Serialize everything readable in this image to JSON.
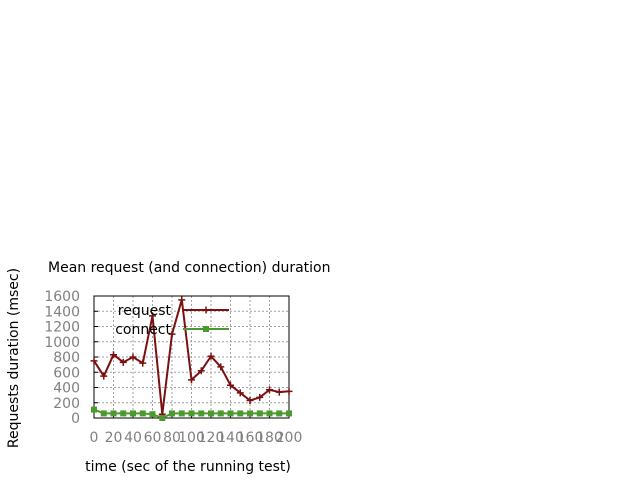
{
  "chart_data": {
    "type": "line",
    "title": "Mean request (and connection) duration",
    "xlabel": "time (sec of the running test)",
    "ylabel": "Requests duration (msec)",
    "xlim": [
      0,
      200
    ],
    "ylim": [
      0,
      1600
    ],
    "xticks": [
      0,
      20,
      40,
      60,
      80,
      100,
      120,
      140,
      160,
      180,
      200
    ],
    "yticks": [
      0,
      200,
      400,
      600,
      800,
      1000,
      1200,
      1400,
      1600
    ],
    "grid": true,
    "legend_position": "top-right",
    "series": [
      {
        "name": "request",
        "color": "#7a1010",
        "marker": "plus",
        "x": [
          0,
          10,
          20,
          30,
          40,
          50,
          60,
          70,
          80,
          90,
          100,
          110,
          120,
          130,
          140,
          150,
          160,
          170,
          180,
          190,
          200
        ],
        "y": [
          750,
          550,
          830,
          730,
          800,
          720,
          1340,
          50,
          1100,
          1550,
          500,
          620,
          810,
          670,
          430,
          330,
          230,
          270,
          370,
          340,
          350
        ]
      },
      {
        "name": "connect",
        "color": "#4a9a30",
        "marker": "square",
        "x": [
          0,
          10,
          20,
          30,
          40,
          50,
          60,
          70,
          80,
          90,
          100,
          110,
          120,
          130,
          140,
          150,
          160,
          170,
          180,
          190,
          200
        ],
        "y": [
          110,
          60,
          60,
          60,
          60,
          60,
          50,
          0,
          60,
          60,
          60,
          60,
          60,
          60,
          60,
          60,
          60,
          60,
          60,
          60,
          60
        ]
      }
    ]
  }
}
